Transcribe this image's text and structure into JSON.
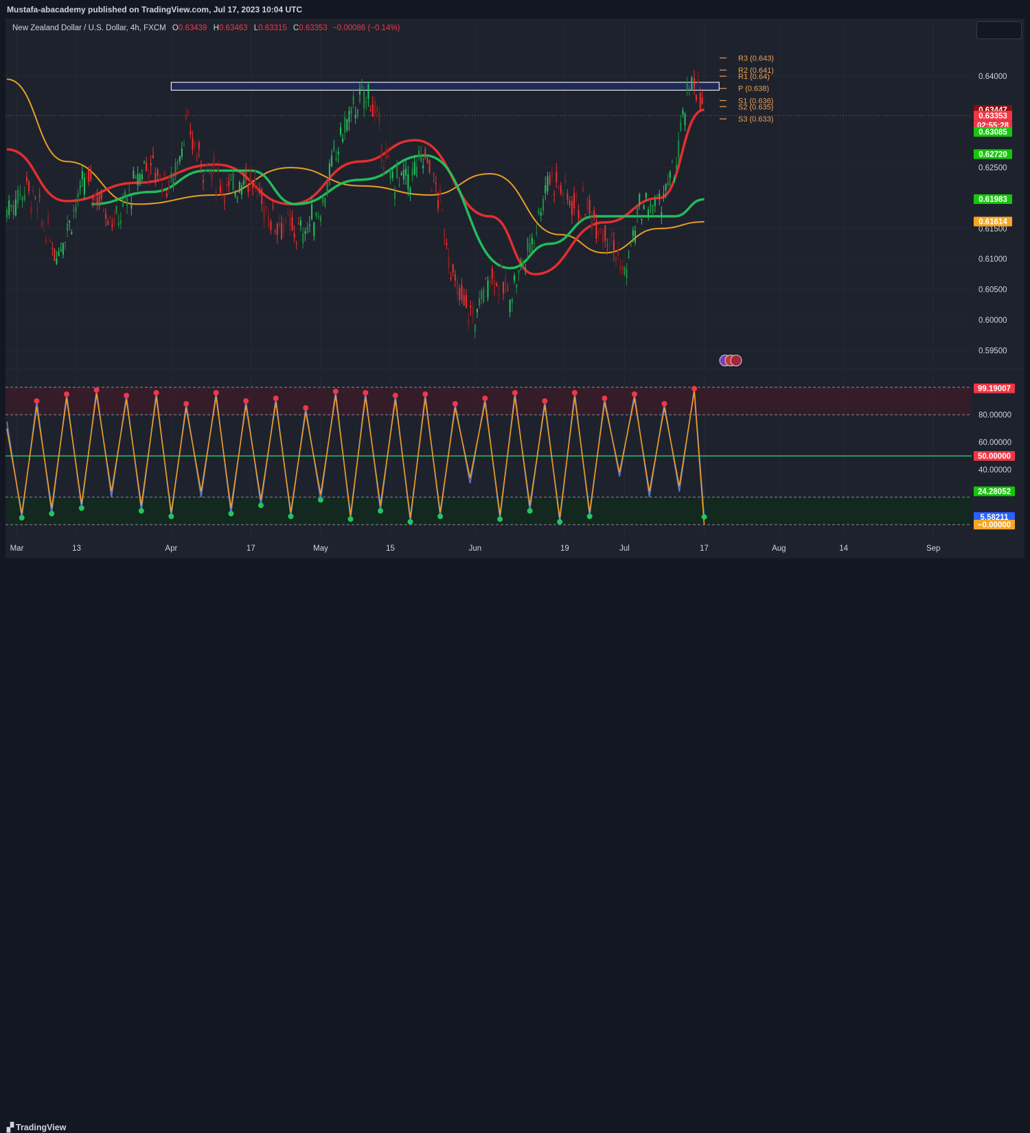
{
  "publisher": "Mustafa-abacademy published on TradingView.com, Jul 17, 2023 10:04 UTC",
  "footer_logo": "TradingView",
  "legend": {
    "symbol": "New Zealand Dollar / U.S. Dollar, 4h, FXCM",
    "o_label": "O",
    "o": "0.63439",
    "h_label": "H",
    "h": "0.63463",
    "l_label": "L",
    "l": "0.63315",
    "c_label": "C",
    "c": "0.63353",
    "change": "−0.00086 (−0.14%)"
  },
  "colors": {
    "background": "#1e222d",
    "up": "#26a69a",
    "green": "#22c55e",
    "red": "#ef2f2f",
    "orange": "#f5a623",
    "pivot": "#f0a050",
    "stoch_blue": "#5b7fd6",
    "stoch_orange": "#f29a1a"
  },
  "chart_data": [
    {
      "type": "line",
      "title": "New Zealand Dollar / U.S. Dollar, 4h, FXCM",
      "ylim": [
        0.593,
        0.648
      ],
      "y_ticks": [
        0.64,
        0.625,
        0.615,
        0.61,
        0.605,
        0.6,
        0.595
      ],
      "y_tick_labels": [
        "0.64000",
        "0.62500",
        "0.61500",
        "0.61000",
        "0.60500",
        "0.60000",
        "0.59500"
      ],
      "x_tick_labels": [
        "Mar",
        "13",
        "Apr",
        "17",
        "May",
        "15",
        "Jun",
        "19",
        "Jul",
        "17",
        "Aug",
        "14",
        "Sep"
      ],
      "x_domain": [
        "2023-02-27",
        "2023-09-08"
      ],
      "x_ticks": [
        "2023-03-01",
        "2023-03-13",
        "2023-04-01",
        "2023-04-17",
        "2023-05-01",
        "2023-05-15",
        "2023-06-01",
        "2023-06-19",
        "2023-07-01",
        "2023-07-17",
        "2023-08-01",
        "2023-08-14",
        "2023-09-01"
      ],
      "price_x": [
        "2023-02-27",
        "2023-03-03",
        "2023-03-09",
        "2023-03-15",
        "2023-03-21",
        "2023-03-27",
        "2023-04-01",
        "2023-04-04",
        "2023-04-07",
        "2023-04-13",
        "2023-04-16",
        "2023-04-21",
        "2023-04-27",
        "2023-05-01",
        "2023-05-05",
        "2023-05-08",
        "2023-05-11",
        "2023-05-15",
        "2023-05-19",
        "2023-05-22",
        "2023-05-25",
        "2023-05-28",
        "2023-06-01",
        "2023-06-04",
        "2023-06-08",
        "2023-06-12",
        "2023-06-16",
        "2023-06-20",
        "2023-06-24",
        "2023-06-28",
        "2023-07-01",
        "2023-07-04",
        "2023-07-08",
        "2023-07-11",
        "2023-07-14",
        "2023-07-15",
        "2023-07-17"
      ],
      "price": [
        0.618,
        0.622,
        0.611,
        0.623,
        0.616,
        0.626,
        0.622,
        0.632,
        0.626,
        0.621,
        0.624,
        0.617,
        0.614,
        0.618,
        0.63,
        0.635,
        0.637,
        0.623,
        0.623,
        0.627,
        0.619,
        0.605,
        0.6,
        0.608,
        0.604,
        0.612,
        0.624,
        0.62,
        0.618,
        0.614,
        0.607,
        0.618,
        0.619,
        0.624,
        0.638,
        0.64,
        0.6335
      ],
      "series": [
        {
          "name": "",
          "color": "#f5a623",
          "x": [
            "2023-02-27",
            "2023-03-11",
            "2023-03-25",
            "2023-04-10",
            "2023-04-25",
            "2023-05-09",
            "2023-05-23",
            "2023-06-04",
            "2023-06-18",
            "2023-06-27",
            "2023-07-08",
            "2023-07-17"
          ],
          "values": [
            0.6395,
            0.626,
            0.619,
            0.6205,
            0.625,
            0.622,
            0.6205,
            0.624,
            0.614,
            0.611,
            0.615,
            0.6161
          ]
        },
        {
          "name": "",
          "color": "#ef2f2f",
          "x": [
            "2023-02-27",
            "2023-03-11",
            "2023-03-25",
            "2023-04-10",
            "2023-04-25",
            "2023-05-09",
            "2023-05-20",
            "2023-06-04",
            "2023-06-13",
            "2023-06-27",
            "2023-07-08",
            "2023-07-17"
          ],
          "values": [
            0.628,
            0.6195,
            0.6225,
            0.6255,
            0.619,
            0.626,
            0.6295,
            0.617,
            0.6075,
            0.616,
            0.62,
            0.6345
          ]
        },
        {
          "name": "",
          "color": "#22c55e",
          "x": [
            "2023-03-16",
            "2023-03-28",
            "2023-04-08",
            "2023-04-17",
            "2023-04-26",
            "2023-05-09",
            "2023-05-22",
            "2023-06-08",
            "2023-06-16",
            "2023-06-25",
            "2023-07-03",
            "2023-07-11",
            "2023-07-17"
          ],
          "values": [
            0.619,
            0.621,
            0.6245,
            0.6245,
            0.619,
            0.623,
            0.627,
            0.6085,
            0.6125,
            0.617,
            0.617,
            0.617,
            0.6198
          ]
        }
      ],
      "pivots": [
        {
          "label": "R3 (0.643)",
          "value": 0.643
        },
        {
          "label": "R2 (0.641)",
          "value": 0.641
        },
        {
          "label": "R1 (0.64)",
          "value": 0.64
        },
        {
          "label": "P (0.638)",
          "value": 0.638
        },
        {
          "label": "S1 (0.636)",
          "value": 0.636
        },
        {
          "label": "S2 (0.635)",
          "value": 0.635
        },
        {
          "label": "S3 (0.633)",
          "value": 0.633
        }
      ],
      "zone": {
        "from_x": "2023-04-01",
        "to_x": "2023-07-20",
        "low": 0.6377,
        "high": 0.639
      },
      "current_line": 0.63353,
      "price_badges": [
        {
          "text": "0.63447",
          "value": 0.63447,
          "color": "#8b0d0d"
        },
        {
          "text": "0.63353",
          "value": 0.63353,
          "color": "#f23645"
        },
        {
          "text": "02:55:28",
          "value": 0.63353,
          "color": "#f23645"
        },
        {
          "text": "0.63085",
          "value": 0.63085,
          "color": "#16c60c"
        },
        {
          "text": "0.62720",
          "value": 0.6272,
          "color": "#16c60c"
        },
        {
          "text": "0.61983",
          "value": 0.61983,
          "color": "#16c60c"
        },
        {
          "text": "0.61614",
          "value": 0.61614,
          "color": "#f5a623"
        }
      ]
    },
    {
      "type": "line",
      "title": "",
      "ylim": [
        0,
        100
      ],
      "y_tick_labels": [
        "99.19007",
        "80.00000",
        "60.00000",
        "50.00000",
        "40.00000",
        "24.28052",
        "5.58211",
        "−0.00000"
      ],
      "y_ticks": [
        99.19,
        80,
        60,
        50,
        40,
        24.28,
        5.58,
        0
      ],
      "levels": [
        100,
        80,
        50,
        20,
        0
      ],
      "x": [
        "2023-02-27",
        "2023-03-02",
        "2023-03-05",
        "2023-03-08",
        "2023-03-11",
        "2023-03-14",
        "2023-03-17",
        "2023-03-20",
        "2023-03-23",
        "2023-03-26",
        "2023-03-29",
        "2023-04-01",
        "2023-04-04",
        "2023-04-07",
        "2023-04-10",
        "2023-04-13",
        "2023-04-16",
        "2023-04-19",
        "2023-04-22",
        "2023-04-25",
        "2023-04-28",
        "2023-05-01",
        "2023-05-04",
        "2023-05-07",
        "2023-05-10",
        "2023-05-13",
        "2023-05-16",
        "2023-05-19",
        "2023-05-22",
        "2023-05-25",
        "2023-05-28",
        "2023-05-31",
        "2023-06-03",
        "2023-06-06",
        "2023-06-09",
        "2023-06-12",
        "2023-06-15",
        "2023-06-18",
        "2023-06-21",
        "2023-06-24",
        "2023-06-27",
        "2023-06-30",
        "2023-07-03",
        "2023-07-06",
        "2023-07-09",
        "2023-07-12",
        "2023-07-15",
        "2023-07-17"
      ],
      "series": [
        {
          "name": "",
          "color": "#5b7fd6",
          "values": [
            75,
            5,
            90,
            8,
            95,
            12,
            98,
            20,
            94,
            10,
            96,
            6,
            88,
            20,
            96,
            8,
            90,
            14,
            92,
            6,
            85,
            18,
            97,
            4,
            96,
            10,
            94,
            2,
            95,
            6,
            88,
            30,
            92,
            4,
            96,
            10,
            90,
            2,
            96,
            6,
            92,
            35,
            95,
            20,
            88,
            24,
            99,
            5.6
          ]
        },
        {
          "name": "",
          "color": "#f29a1a",
          "values": [
            70,
            8,
            86,
            12,
            92,
            15,
            95,
            24,
            91,
            14,
            93,
            9,
            85,
            24,
            93,
            12,
            87,
            18,
            89,
            9,
            82,
            22,
            94,
            7,
            93,
            14,
            91,
            5,
            92,
            9,
            85,
            34,
            89,
            7,
            93,
            14,
            87,
            5,
            93,
            9,
            89,
            38,
            92,
            24,
            85,
            28,
            97,
            0
          ]
        }
      ]
    }
  ]
}
